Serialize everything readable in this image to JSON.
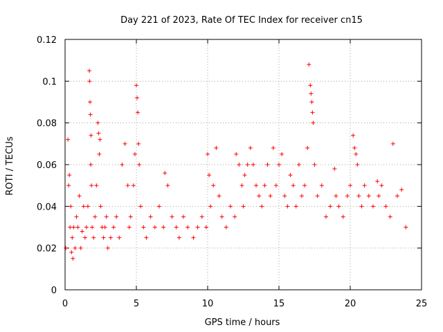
{
  "chart_data": {
    "type": "scatter",
    "title": "Day 221 of 2023, Rate Of TEC Index for receiver cn15",
    "xlabel": "GPS time / hours",
    "ylabel": "ROTI / TECUs",
    "xlim": [
      0,
      25
    ],
    "ylim": [
      0,
      0.12
    ],
    "x_ticks": [
      0,
      5,
      10,
      15,
      20,
      25
    ],
    "y_ticks": [
      0,
      0.02,
      0.04,
      0.06,
      0.08,
      0.1,
      0.12
    ],
    "x_tick_labels": [
      "0",
      "5",
      "10",
      "15",
      "20",
      "25"
    ],
    "y_tick_labels": [
      "0",
      "0.02",
      "0.04",
      "0.06",
      "0.08",
      "0.1",
      "0.12"
    ],
    "grid": true,
    "marker": "plus",
    "color": "#ff0000",
    "series": [
      {
        "x": [
          0.05,
          0.2,
          0.25,
          0.3,
          0.35,
          0.4,
          0.45,
          0.5,
          0.55,
          0.6,
          0.7,
          0.8,
          0.9,
          1.0,
          1.1,
          1.2,
          1.3,
          1.4,
          1.5,
          1.6,
          1.7,
          1.72,
          1.75,
          1.78,
          1.8,
          1.82,
          1.85,
          1.9,
          2.0,
          2.1,
          2.2,
          2.3,
          2.35,
          2.4,
          2.45,
          2.5,
          2.6,
          2.7,
          2.8,
          2.9,
          3.0,
          3.2,
          3.4,
          3.6,
          3.8,
          4.0,
          4.2,
          4.4,
          4.5,
          4.6,
          4.8,
          4.9,
          5.0,
          5.05,
          5.1,
          5.15,
          5.2,
          5.3,
          5.5,
          5.7,
          6.0,
          6.3,
          6.6,
          6.9,
          7.0,
          7.2,
          7.5,
          7.8,
          8.0,
          8.3,
          8.6,
          9.0,
          9.3,
          9.6,
          9.9,
          10.0,
          10.1,
          10.2,
          10.4,
          10.6,
          10.8,
          11.0,
          11.3,
          11.6,
          11.9,
          12.0,
          12.2,
          12.4,
          12.5,
          12.6,
          12.8,
          13.0,
          13.2,
          13.4,
          13.6,
          13.8,
          14.0,
          14.2,
          14.4,
          14.6,
          14.8,
          15.0,
          15.2,
          15.4,
          15.6,
          15.8,
          16.0,
          16.2,
          16.4,
          16.6,
          16.8,
          17.0,
          17.1,
          17.2,
          17.25,
          17.3,
          17.35,
          17.4,
          17.5,
          17.7,
          18.0,
          18.3,
          18.6,
          18.9,
          19.0,
          19.2,
          19.5,
          19.8,
          20.0,
          20.2,
          20.3,
          20.4,
          20.5,
          20.6,
          20.8,
          21.0,
          21.3,
          21.6,
          21.9,
          22.0,
          22.2,
          22.5,
          22.8,
          23.0,
          23.3,
          23.6,
          23.9
        ],
        "y": [
          0.02,
          0.072,
          0.05,
          0.055,
          0.03,
          0.04,
          0.018,
          0.025,
          0.015,
          0.03,
          0.02,
          0.035,
          0.03,
          0.045,
          0.02,
          0.028,
          0.04,
          0.025,
          0.03,
          0.04,
          0.105,
          0.1,
          0.09,
          0.084,
          0.06,
          0.074,
          0.05,
          0.03,
          0.025,
          0.035,
          0.05,
          0.08,
          0.075,
          0.065,
          0.072,
          0.04,
          0.03,
          0.025,
          0.03,
          0.035,
          0.02,
          0.025,
          0.03,
          0.035,
          0.025,
          0.06,
          0.07,
          0.05,
          0.03,
          0.035,
          0.05,
          0.065,
          0.098,
          0.092,
          0.085,
          0.07,
          0.06,
          0.04,
          0.03,
          0.025,
          0.035,
          0.03,
          0.04,
          0.03,
          0.056,
          0.05,
          0.035,
          0.03,
          0.025,
          0.035,
          0.03,
          0.025,
          0.03,
          0.035,
          0.03,
          0.065,
          0.055,
          0.04,
          0.05,
          0.068,
          0.045,
          0.035,
          0.03,
          0.04,
          0.035,
          0.065,
          0.06,
          0.05,
          0.04,
          0.055,
          0.06,
          0.068,
          0.06,
          0.05,
          0.045,
          0.04,
          0.05,
          0.06,
          0.045,
          0.068,
          0.05,
          0.06,
          0.065,
          0.045,
          0.04,
          0.055,
          0.05,
          0.04,
          0.06,
          0.045,
          0.05,
          0.068,
          0.108,
          0.098,
          0.094,
          0.09,
          0.085,
          0.08,
          0.06,
          0.045,
          0.05,
          0.035,
          0.04,
          0.058,
          0.045,
          0.04,
          0.035,
          0.045,
          0.05,
          0.074,
          0.068,
          0.065,
          0.06,
          0.045,
          0.04,
          0.05,
          0.045,
          0.04,
          0.052,
          0.045,
          0.05,
          0.04,
          0.035,
          0.07,
          0.045,
          0.048,
          0.03
        ]
      }
    ]
  }
}
